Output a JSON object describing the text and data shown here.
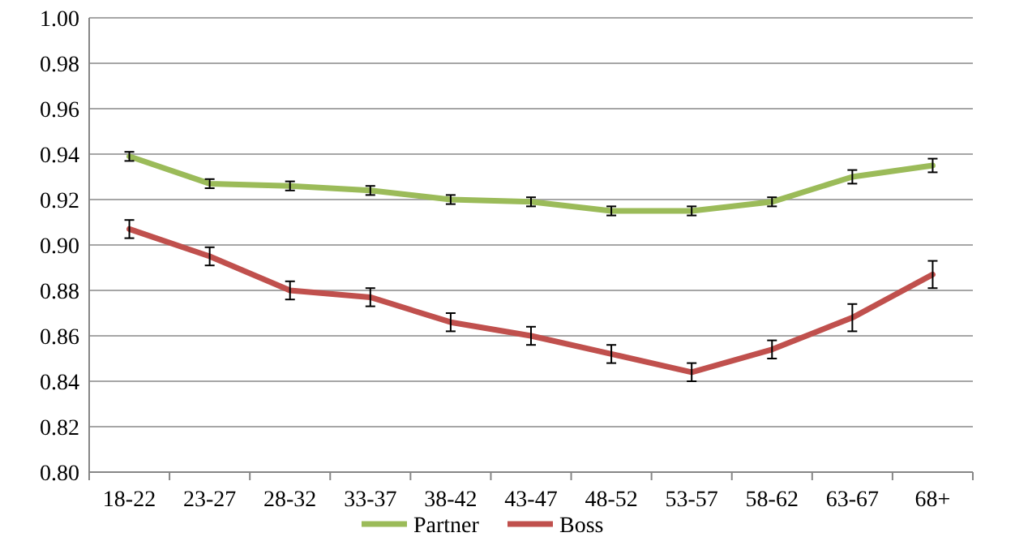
{
  "chart_data": {
    "type": "line",
    "categories": [
      "18-22",
      "23-27",
      "28-32",
      "33-37",
      "38-42",
      "43-47",
      "48-52",
      "53-57",
      "58-62",
      "63-67",
      "68+"
    ],
    "series": [
      {
        "name": "Partner",
        "color": "#9bbb59",
        "values": [
          0.939,
          0.927,
          0.926,
          0.924,
          0.92,
          0.919,
          0.915,
          0.915,
          0.919,
          0.93,
          0.935
        ],
        "errors": [
          0.002,
          0.002,
          0.002,
          0.002,
          0.002,
          0.002,
          0.002,
          0.002,
          0.002,
          0.003,
          0.003
        ]
      },
      {
        "name": "Boss",
        "color": "#c0504d",
        "values": [
          0.907,
          0.895,
          0.88,
          0.877,
          0.866,
          0.86,
          0.852,
          0.844,
          0.854,
          0.868,
          0.887
        ],
        "errors": [
          0.004,
          0.004,
          0.004,
          0.004,
          0.004,
          0.004,
          0.004,
          0.004,
          0.004,
          0.006,
          0.006
        ]
      }
    ],
    "ylim": [
      0.8,
      1.0
    ],
    "yticks": [
      {
        "value": 0.8,
        "label": "0.80"
      },
      {
        "value": 0.82,
        "label": "0.82"
      },
      {
        "value": 0.84,
        "label": "0.84"
      },
      {
        "value": 0.86,
        "label": "0.86"
      },
      {
        "value": 0.88,
        "label": "0.88"
      },
      {
        "value": 0.9,
        "label": "0.90"
      },
      {
        "value": 0.92,
        "label": "0.92"
      },
      {
        "value": 0.94,
        "label": "0.94"
      },
      {
        "value": 0.96,
        "label": "0.96"
      },
      {
        "value": 0.98,
        "label": "0.98"
      },
      {
        "value": 1.0,
        "label": "1.00"
      }
    ],
    "grid": "y",
    "legend": "bottom",
    "marker": "none",
    "line_style": "solid"
  }
}
